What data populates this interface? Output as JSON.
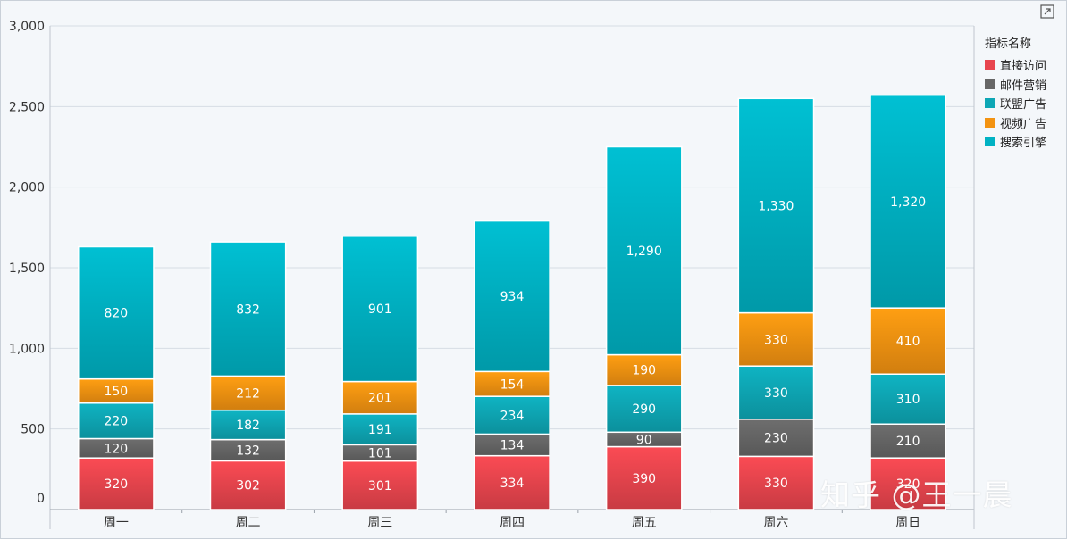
{
  "chart_data": {
    "type": "bar",
    "stacked": true,
    "categories": [
      "周一",
      "周二",
      "周三",
      "周四",
      "周五",
      "周六",
      "周日"
    ],
    "series": [
      {
        "name": "直接访问",
        "color": "#e8454e",
        "values": [
          320,
          302,
          301,
          334,
          390,
          330,
          320
        ]
      },
      {
        "name": "邮件营销",
        "color": "#666666",
        "values": [
          120,
          132,
          101,
          134,
          90,
          230,
          210
        ]
      },
      {
        "name": "联盟广告",
        "color": "#0ea7b5",
        "values": [
          220,
          182,
          191,
          234,
          290,
          330,
          310
        ]
      },
      {
        "name": "视频广告",
        "color": "#f39311",
        "values": [
          150,
          212,
          201,
          154,
          190,
          330,
          410
        ]
      },
      {
        "name": "搜索引擎",
        "color": "#00b2c3",
        "values": [
          820,
          832,
          901,
          934,
          1290,
          1330,
          1320
        ]
      }
    ],
    "y_ticks": [
      "0",
      "500",
      "1,000",
      "1,500",
      "2,000",
      "2,500",
      "3,000"
    ],
    "ylim": [
      0,
      3000
    ],
    "grid": true,
    "legend_position": "right",
    "legend_title": "指标名称",
    "data_labels": true
  },
  "icons": {
    "expand": "expand-icon"
  },
  "watermark": "知乎 @王一晨"
}
